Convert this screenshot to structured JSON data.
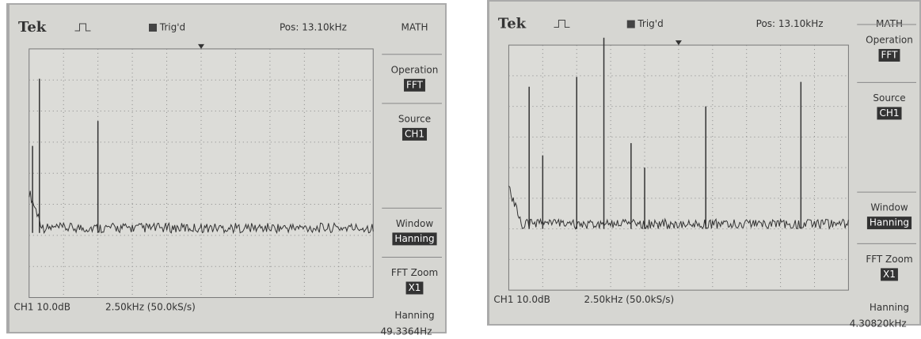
{
  "screens": [
    {
      "header": {
        "brand": "Tek",
        "trigger": "Trig'd",
        "position": "Pos: 13.10kHz",
        "menu_title": "MATH"
      },
      "menu": [
        {
          "label": "Operation",
          "value": "FFT"
        },
        {
          "label": "Source",
          "value": "CH1"
        },
        {
          "label": "Window",
          "value": "Hanning"
        },
        {
          "label": "FFT Zoom",
          "value": "X1"
        }
      ],
      "footer": {
        "channel": "CH1 10.0dB",
        "timebase": "2.50kHz (50.0kS/s)",
        "window": "Hanning",
        "cursor": "49.3364Hz"
      }
    },
    {
      "header": {
        "brand": "Tek",
        "trigger": "Trig'd",
        "position": "Pos: 13.10kHz",
        "menu_title": "MATH"
      },
      "menu": [
        {
          "label": "Operation",
          "value": "FFT"
        },
        {
          "label": "Source",
          "value": "CH1"
        },
        {
          "label": "Window",
          "value": "Hanning"
        },
        {
          "label": "FFT Zoom",
          "value": "X1"
        }
      ],
      "footer": {
        "channel": "CH1 10.0dB",
        "timebase": "2.50kHz (50.0kS/s)",
        "window": "Hanning",
        "cursor": "4.30820kHz"
      }
    }
  ]
}
